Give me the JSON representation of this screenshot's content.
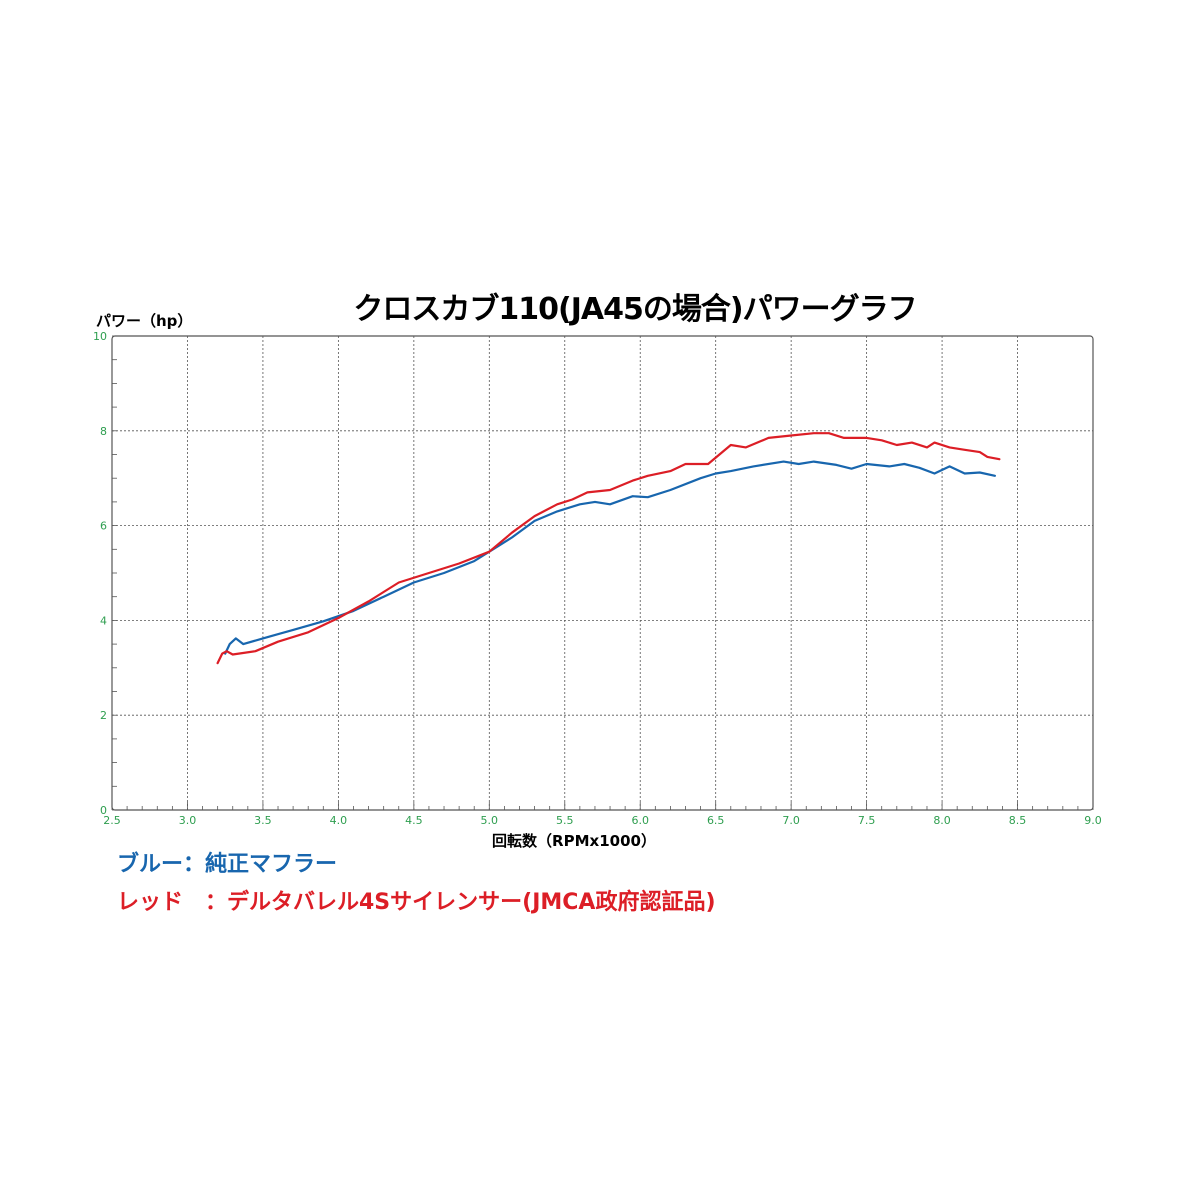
{
  "chart_data": {
    "type": "line",
    "title": "クロスカブ110(JA45の場合)パワーグラフ",
    "ylabel": "パワー（hp）",
    "xlabel": "回転数（RPMx1000）",
    "xlim": [
      2.5,
      9.0
    ],
    "ylim": [
      0,
      10
    ],
    "x_ticks": [
      "2.5",
      "3.0",
      "3.5",
      "4.0",
      "4.5",
      "5.0",
      "5.5",
      "6.0",
      "6.5",
      "7.0",
      "7.5",
      "8.0",
      "8.5",
      "9.0"
    ],
    "y_ticks": [
      "0",
      "2",
      "4",
      "6",
      "8",
      "10"
    ],
    "grid": true,
    "series": [
      {
        "name": "純正マフラー",
        "color": "#1866ae",
        "points": [
          [
            3.25,
            3.3
          ],
          [
            3.28,
            3.5
          ],
          [
            3.32,
            3.62
          ],
          [
            3.37,
            3.5
          ],
          [
            3.5,
            3.62
          ],
          [
            3.7,
            3.8
          ],
          [
            3.9,
            3.98
          ],
          [
            4.1,
            4.2
          ],
          [
            4.3,
            4.5
          ],
          [
            4.5,
            4.8
          ],
          [
            4.7,
            5.0
          ],
          [
            4.9,
            5.25
          ],
          [
            5.0,
            5.45
          ],
          [
            5.15,
            5.75
          ],
          [
            5.3,
            6.1
          ],
          [
            5.45,
            6.3
          ],
          [
            5.6,
            6.45
          ],
          [
            5.7,
            6.5
          ],
          [
            5.8,
            6.45
          ],
          [
            5.95,
            6.62
          ],
          [
            6.05,
            6.6
          ],
          [
            6.2,
            6.75
          ],
          [
            6.4,
            7.0
          ],
          [
            6.5,
            7.1
          ],
          [
            6.6,
            7.15
          ],
          [
            6.75,
            7.25
          ],
          [
            6.95,
            7.35
          ],
          [
            7.05,
            7.3
          ],
          [
            7.15,
            7.35
          ],
          [
            7.3,
            7.28
          ],
          [
            7.4,
            7.2
          ],
          [
            7.5,
            7.3
          ],
          [
            7.65,
            7.25
          ],
          [
            7.75,
            7.3
          ],
          [
            7.85,
            7.22
          ],
          [
            7.95,
            7.1
          ],
          [
            8.05,
            7.25
          ],
          [
            8.15,
            7.1
          ],
          [
            8.25,
            7.12
          ],
          [
            8.35,
            7.05
          ]
        ]
      },
      {
        "name": "デルタバレル4Sサイレンサー(JMCA政府認証品)",
        "color": "#dc1e26",
        "points": [
          [
            3.2,
            3.1
          ],
          [
            3.23,
            3.3
          ],
          [
            3.26,
            3.35
          ],
          [
            3.3,
            3.28
          ],
          [
            3.45,
            3.35
          ],
          [
            3.6,
            3.55
          ],
          [
            3.8,
            3.75
          ],
          [
            4.0,
            4.05
          ],
          [
            4.2,
            4.4
          ],
          [
            4.4,
            4.8
          ],
          [
            4.6,
            5.0
          ],
          [
            4.8,
            5.2
          ],
          [
            5.0,
            5.45
          ],
          [
            5.15,
            5.85
          ],
          [
            5.3,
            6.2
          ],
          [
            5.45,
            6.45
          ],
          [
            5.55,
            6.55
          ],
          [
            5.65,
            6.7
          ],
          [
            5.8,
            6.75
          ],
          [
            5.95,
            6.95
          ],
          [
            6.05,
            7.05
          ],
          [
            6.2,
            7.15
          ],
          [
            6.3,
            7.3
          ],
          [
            6.45,
            7.3
          ],
          [
            6.6,
            7.7
          ],
          [
            6.7,
            7.65
          ],
          [
            6.85,
            7.85
          ],
          [
            7.0,
            7.9
          ],
          [
            7.15,
            7.95
          ],
          [
            7.25,
            7.95
          ],
          [
            7.35,
            7.85
          ],
          [
            7.5,
            7.85
          ],
          [
            7.6,
            7.8
          ],
          [
            7.7,
            7.7
          ],
          [
            7.8,
            7.75
          ],
          [
            7.9,
            7.65
          ],
          [
            7.95,
            7.75
          ],
          [
            8.05,
            7.65
          ],
          [
            8.15,
            7.6
          ],
          [
            8.25,
            7.55
          ],
          [
            8.3,
            7.45
          ],
          [
            8.38,
            7.4
          ]
        ]
      }
    ]
  },
  "legend": {
    "blue_label": "ブルー：純正マフラー",
    "red_label": "レッド　：デルタバレル4Sサイレンサー(JMCA政府認証品)"
  }
}
